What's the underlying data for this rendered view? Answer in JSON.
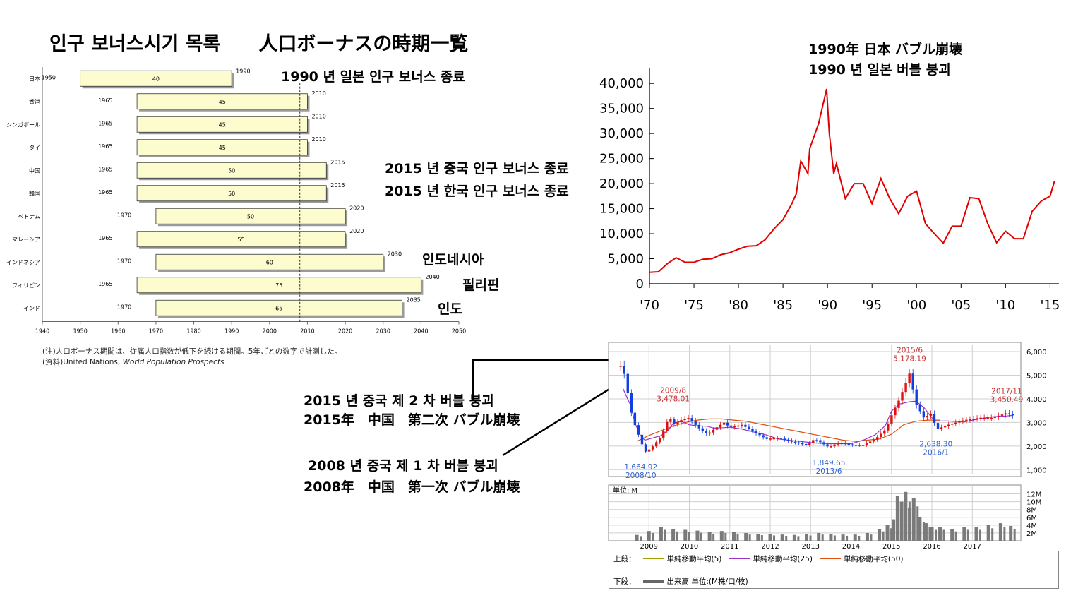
{
  "page": {
    "title": "인구 보너스시기 목록　　人口ボーナスの時期一覧",
    "note_line1": "(注)人口ボーナス期間は、従属人口指数が低下を続ける期間。5年ごとの数字で計測した。",
    "note_line2_prefix": "(資料)United Nations, ",
    "note_line2_italic": "World Population Prospects",
    "annotations": {
      "japan_end": "1990 년 일본 인구 보너스 종료",
      "china_end": "2015 년 중국 인구 보너스 종료",
      "korea_end": "2015 년 한국 인구 보너스 종료",
      "indonesia": "인도네시아",
      "philippines": "필리핀",
      "india": "인도",
      "bubble_jp_1": "1990年 日本 バブル崩壊",
      "bubble_jp_2": "1990 년 일본 버블 붕괴",
      "bubble_cn2_kr": "2015 년 중국 제 2 차 버블 붕괴",
      "bubble_cn2_jp": "2015年　中国　第二次 バブル崩壊",
      "bubble_cn1_kr": "2008 년 중국 제 1 차 버블 붕괴",
      "bubble_cn1_jp": "2008年　中国　第一次 バブル崩壊"
    },
    "legend": {
      "upper_label": "上段：",
      "ma5": "単純移動平均(5)",
      "ma25": "単純移動平均(25)",
      "ma50": "単純移動平均(50)",
      "lower_label": "下段：",
      "volume": "出来高 単位:(M株/口/枚)"
    },
    "colors": {
      "bar_fill": "#fdfccf",
      "nikkei_line": "#e00000",
      "ma5": "#a0a000",
      "ma25": "#9b30c8",
      "ma50": "#e05010",
      "up_candle": "#e01010",
      "down_candle": "#1040e0",
      "volume_bar": "#7a7a7a",
      "high_label": "#c83030",
      "low_label": "#3060d0"
    }
  },
  "chart_data": [
    {
      "type": "bar",
      "id": "population-bonus",
      "orientation": "horizontal",
      "categories": [
        "日本",
        "香港",
        "シンガポール",
        "タイ",
        "中国",
        "韓国",
        "ベトナム",
        "マレーシア",
        "インドネシア",
        "フィリピン",
        "インド"
      ],
      "start": [
        1950,
        1965,
        1965,
        1965,
        1965,
        1965,
        1970,
        1965,
        1970,
        1965,
        1970
      ],
      "end": [
        1990,
        2010,
        2010,
        2010,
        2015,
        2015,
        2020,
        2020,
        2030,
        2040,
        2035
      ],
      "values": [
        40,
        45,
        45,
        45,
        50,
        50,
        50,
        55,
        60,
        75,
        65
      ],
      "start_labels": [
        "1950",
        "1965",
        "1965",
        "1965",
        "1965",
        "1965",
        "1970",
        "1965",
        "1970",
        "1965",
        "1970"
      ],
      "end_labels": [
        "1990",
        "2010",
        "2010",
        "2010",
        "2015",
        "2015",
        "2020",
        "2020",
        "2030",
        "2040",
        "2035"
      ],
      "xlim": [
        1940,
        2050
      ],
      "xticks": [
        "1940",
        "1950",
        "1960",
        "1970",
        "1980",
        "1990",
        "2000",
        "2010",
        "2020",
        "2030",
        "2040",
        "2050"
      ],
      "reference_line_x": 2008
    },
    {
      "type": "line",
      "id": "nikkei-225",
      "x": [
        1970,
        1971,
        1972,
        1973,
        1974,
        1975,
        1976,
        1977,
        1978,
        1979,
        1980,
        1981,
        1982,
        1983,
        1984,
        1985,
        1986,
        1986.5,
        1987,
        1987.8,
        1988,
        1989,
        1989.9,
        1990.2,
        1990.7,
        1991,
        1992,
        1993,
        1994,
        1995,
        1996,
        1997,
        1998,
        1999,
        2000,
        2001,
        2002,
        2003,
        2004,
        2005,
        2006,
        2007,
        2008,
        2009,
        2010,
        2011,
        2012,
        2013,
        2014,
        2015,
        2015.5
      ],
      "y": [
        2300,
        2400,
        4000,
        5200,
        4300,
        4300,
        4900,
        5000,
        5800,
        6200,
        6900,
        7500,
        7600,
        8800,
        11000,
        12800,
        16000,
        18000,
        24500,
        22000,
        27000,
        32000,
        38900,
        30000,
        22000,
        24000,
        17000,
        20000,
        20000,
        16000,
        21000,
        17000,
        14000,
        17500,
        18500,
        12000,
        10000,
        8100,
        11500,
        11500,
        17200,
        17000,
        12000,
        8200,
        10500,
        9000,
        9000,
        14500,
        16500,
        17500,
        20500
      ],
      "xlim": [
        1970,
        2016
      ],
      "ylim": [
        0,
        42000
      ],
      "xticks": [
        "'70",
        "'75",
        "'80",
        "'85",
        "'90",
        "'95",
        "'00",
        "'05",
        "'10",
        "'15"
      ],
      "yticks": [
        "0",
        "5,000",
        "10,000",
        "15,000",
        "20,000",
        "25,000",
        "30,000",
        "35,000",
        "40,000"
      ]
    },
    {
      "type": "line",
      "id": "shanghai-composite",
      "x": [
        2008.35,
        2008.45,
        2008.55,
        2008.65,
        2008.78,
        2008.9,
        2009.05,
        2009.3,
        2009.5,
        2009.6,
        2009.8,
        2010.0,
        2010.2,
        2010.45,
        2010.6,
        2010.85,
        2011.0,
        2011.3,
        2011.6,
        2011.9,
        2012.2,
        2012.5,
        2012.9,
        2013.1,
        2013.45,
        2013.7,
        2014.0,
        2014.3,
        2014.6,
        2014.85,
        2015.0,
        2015.2,
        2015.45,
        2015.6,
        2015.8,
        2016.0,
        2016.1,
        2016.4,
        2016.8,
        2017.2,
        2017.5,
        2017.85,
        2018.0
      ],
      "y": [
        5400,
        4500,
        3500,
        2900,
        2300,
        1750,
        1900,
        2400,
        3250,
        2900,
        3100,
        3200,
        2800,
        2500,
        2700,
        3000,
        2800,
        2900,
        2600,
        2300,
        2350,
        2200,
        2050,
        2300,
        1950,
        2150,
        2050,
        2050,
        2300,
        2700,
        3300,
        4000,
        5100,
        3800,
        3200,
        3400,
        2700,
        2900,
        3100,
        3200,
        3200,
        3400,
        3300
      ],
      "ma50_y": [
        2200,
        2450,
        2650,
        2850,
        3000,
        3100,
        3150,
        3150,
        3100,
        3050,
        2950,
        2850,
        2750,
        2650,
        2550,
        2450,
        2350,
        2250,
        2200,
        2250,
        2300,
        2500,
        2900,
        3050,
        3100,
        3100
      ],
      "ma50_x": [
        2008.7,
        2009.0,
        2009.3,
        2009.6,
        2009.9,
        2010.2,
        2010.5,
        2010.8,
        2011.1,
        2011.4,
        2011.7,
        2012.0,
        2012.3,
        2012.6,
        2012.9,
        2013.2,
        2013.5,
        2013.8,
        2014.1,
        2014.4,
        2014.7,
        2015.0,
        2015.3,
        2015.6,
        2015.9,
        2016.2
      ],
      "xlim": [
        2008.0,
        2018.2
      ],
      "ylim": [
        800,
        6300
      ],
      "xticks": [
        "2009",
        "2010",
        "2011",
        "2012",
        "2013",
        "2014",
        "2015",
        "2016",
        "2017"
      ],
      "yticks": [
        "1,000",
        "2,000",
        "3,000",
        "4,000",
        "5,000",
        "6,000"
      ],
      "annotations": [
        {
          "x": 2009.6,
          "y": 3478.01,
          "label1": "2009/8",
          "label2": "3,478.01",
          "kind": "high"
        },
        {
          "x": 2008.8,
          "y": 1664.92,
          "label1": "1,664.92",
          "label2": "2008/10",
          "kind": "low"
        },
        {
          "x": 2013.45,
          "y": 1849.65,
          "label1": "1,849.65",
          "label2": "2013/6",
          "kind": "low"
        },
        {
          "x": 2015.45,
          "y": 5178.19,
          "label1": "2015/6",
          "label2": "5,178.19",
          "kind": "high"
        },
        {
          "x": 2016.1,
          "y": 2638.3,
          "label1": "2,638.30",
          "label2": "2016/1",
          "kind": "low"
        },
        {
          "x": 2017.85,
          "y": 3450.49,
          "label1": "2017/11",
          "label2": "3,450.49",
          "kind": "high"
        }
      ]
    },
    {
      "type": "bar",
      "id": "shanghai-volume",
      "unit_label": "単位: M",
      "ylim": [
        0,
        13
      ],
      "yticks": [
        "2M",
        "4M",
        "6M",
        "8M",
        "10M",
        "12M"
      ],
      "xlim": [
        2008.0,
        2018.2
      ],
      "x": [
        2008.7,
        2009.0,
        2009.3,
        2009.6,
        2009.9,
        2010.2,
        2010.5,
        2010.8,
        2011.1,
        2011.4,
        2011.7,
        2012.0,
        2012.3,
        2012.6,
        2012.9,
        2013.2,
        2013.5,
        2013.8,
        2014.1,
        2014.4,
        2014.7,
        2014.9,
        2015.05,
        2015.15,
        2015.25,
        2015.35,
        2015.45,
        2015.55,
        2015.7,
        2015.85,
        2016.0,
        2016.2,
        2016.5,
        2016.8,
        2017.1,
        2017.4,
        2017.7,
        2017.95
      ],
      "values": [
        1.5,
        2.5,
        3.5,
        3.0,
        2.8,
        2.6,
        2.2,
        2.5,
        2.2,
        2.0,
        1.8,
        1.7,
        1.6,
        1.5,
        1.7,
        2.0,
        1.7,
        1.6,
        1.6,
        2.0,
        3.0,
        4.0,
        5.5,
        11.5,
        10.0,
        12.5,
        8.5,
        11.0,
        6.0,
        4.5,
        3.5,
        3.5,
        3.0,
        3.5,
        3.5,
        4.0,
        4.5,
        3.8
      ]
    }
  ]
}
